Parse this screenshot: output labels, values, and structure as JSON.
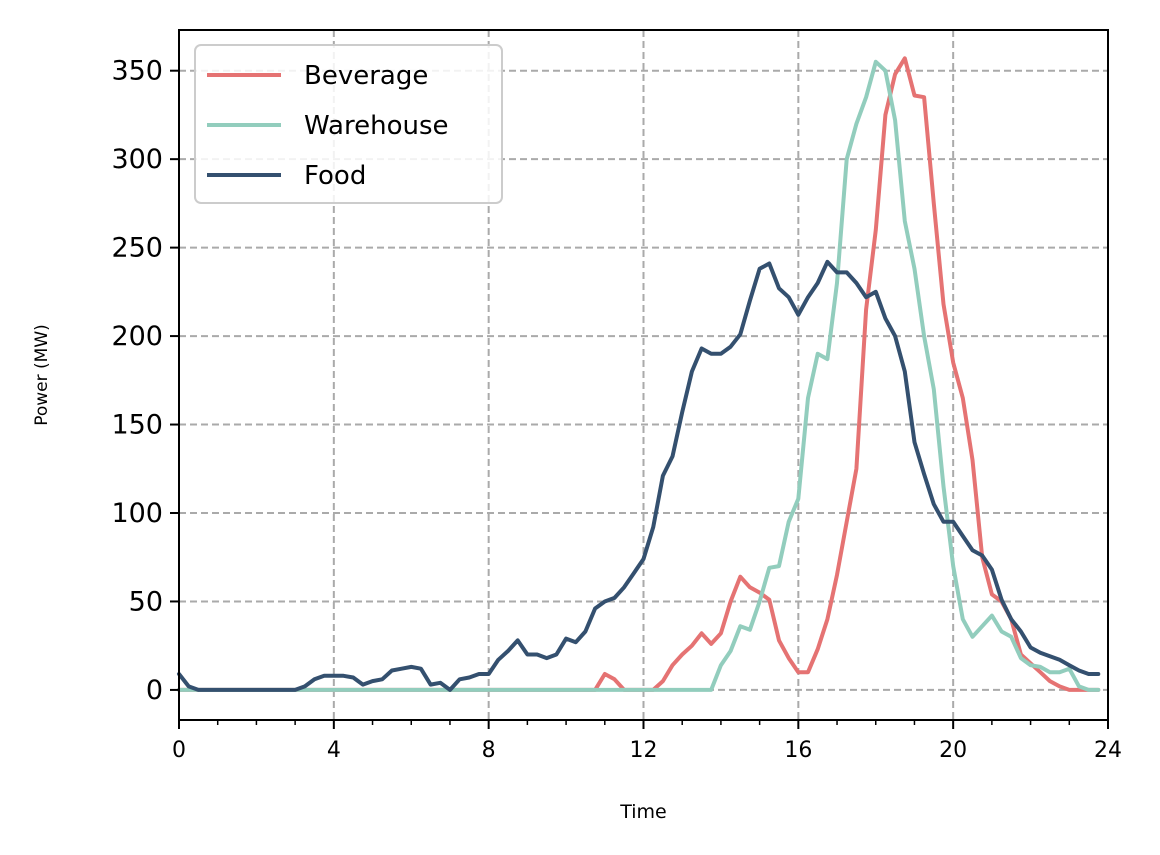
{
  "chart_data": {
    "type": "line",
    "title": "",
    "xlabel": "Time",
    "ylabel": "Power (MW)",
    "xlim": [
      0,
      24
    ],
    "ylim": [
      -17,
      373
    ],
    "x_ticks": [
      0,
      4,
      8,
      12,
      16,
      20,
      24
    ],
    "y_ticks": [
      0,
      50,
      100,
      150,
      200,
      250,
      300,
      350
    ],
    "grid": true,
    "legend_position": "top-left",
    "x": [
      0,
      0.25,
      0.5,
      0.75,
      1,
      1.25,
      1.5,
      1.75,
      2,
      2.25,
      2.5,
      2.75,
      3,
      3.25,
      3.5,
      3.75,
      4,
      4.25,
      4.5,
      4.75,
      5,
      5.25,
      5.5,
      5.75,
      6,
      6.25,
      6.5,
      6.75,
      7,
      7.25,
      7.5,
      7.75,
      8,
      8.25,
      8.5,
      8.75,
      9,
      9.25,
      9.5,
      9.75,
      10,
      10.25,
      10.5,
      10.75,
      11,
      11.25,
      11.5,
      11.75,
      12,
      12.25,
      12.5,
      12.75,
      13,
      13.25,
      13.5,
      13.75,
      14,
      14.25,
      14.5,
      14.75,
      15,
      15.25,
      15.5,
      15.75,
      16,
      16.25,
      16.5,
      16.75,
      17,
      17.25,
      17.5,
      17.75,
      18,
      18.25,
      18.5,
      18.75,
      19,
      19.25,
      19.5,
      19.75,
      20,
      20.25,
      20.5,
      20.75,
      21,
      21.25,
      21.5,
      21.75,
      22,
      22.25,
      22.5,
      22.75,
      23,
      23.25,
      23.5,
      23.75
    ],
    "series": [
      {
        "name": "Beverage",
        "color": "#E57373",
        "values": [
          0,
          0,
          0,
          0,
          0,
          0,
          0,
          0,
          0,
          0,
          0,
          0,
          0,
          0,
          0,
          0,
          0,
          0,
          0,
          0,
          0,
          0,
          0,
          0,
          0,
          0,
          0,
          0,
          0,
          0,
          0,
          0,
          0,
          0,
          0,
          0,
          0,
          0,
          0,
          0,
          0,
          0,
          0,
          0,
          9,
          6,
          0,
          0,
          0,
          0,
          5,
          14,
          20,
          25,
          32,
          26,
          32,
          50,
          64,
          58,
          55,
          51,
          28,
          18,
          10,
          10,
          23,
          40,
          65,
          95,
          125,
          215,
          260,
          325,
          348,
          357,
          336,
          335,
          275,
          218,
          185,
          165,
          130,
          75,
          54,
          50,
          40,
          20,
          15,
          10,
          5,
          2,
          0,
          0,
          0,
          0
        ]
      },
      {
        "name": "Warehouse",
        "color": "#92CDBD",
        "values": [
          0,
          0,
          0,
          0,
          0,
          0,
          0,
          0,
          0,
          0,
          0,
          0,
          0,
          0,
          0,
          0,
          0,
          0,
          0,
          0,
          0,
          0,
          0,
          0,
          0,
          0,
          0,
          0,
          0,
          0,
          0,
          0,
          0,
          0,
          0,
          0,
          0,
          0,
          0,
          0,
          0,
          0,
          0,
          0,
          0,
          0,
          0,
          0,
          0,
          0,
          0,
          0,
          0,
          0,
          0,
          0,
          14,
          22,
          36,
          34,
          50,
          69,
          70,
          95,
          108,
          165,
          190,
          187,
          230,
          300,
          320,
          335,
          355,
          350,
          322,
          265,
          238,
          200,
          170,
          115,
          70,
          40,
          30,
          36,
          42,
          33,
          30,
          18,
          14,
          13,
          10,
          10,
          12,
          2,
          0,
          0
        ]
      },
      {
        "name": "Food",
        "color": "#34506F",
        "values": [
          9,
          2,
          0,
          0,
          0,
          0,
          0,
          0,
          0,
          0,
          0,
          0,
          0,
          2,
          6,
          8,
          8,
          8,
          7,
          3,
          5,
          6,
          11,
          12,
          13,
          12,
          3,
          4,
          0,
          6,
          7,
          9,
          9,
          17,
          22,
          28,
          20,
          20,
          18,
          20,
          29,
          27,
          33,
          46,
          50,
          52,
          58,
          66,
          74,
          92,
          121,
          132,
          157,
          180,
          193,
          190,
          190,
          194,
          201,
          220,
          238,
          241,
          227,
          222,
          212,
          222,
          230,
          242,
          236,
          236,
          230,
          222,
          225,
          210,
          200,
          180,
          140,
          122,
          105,
          95,
          95,
          87,
          79,
          76,
          68,
          51,
          40,
          33,
          24,
          21,
          19,
          17,
          14,
          11,
          9,
          9
        ]
      }
    ]
  }
}
